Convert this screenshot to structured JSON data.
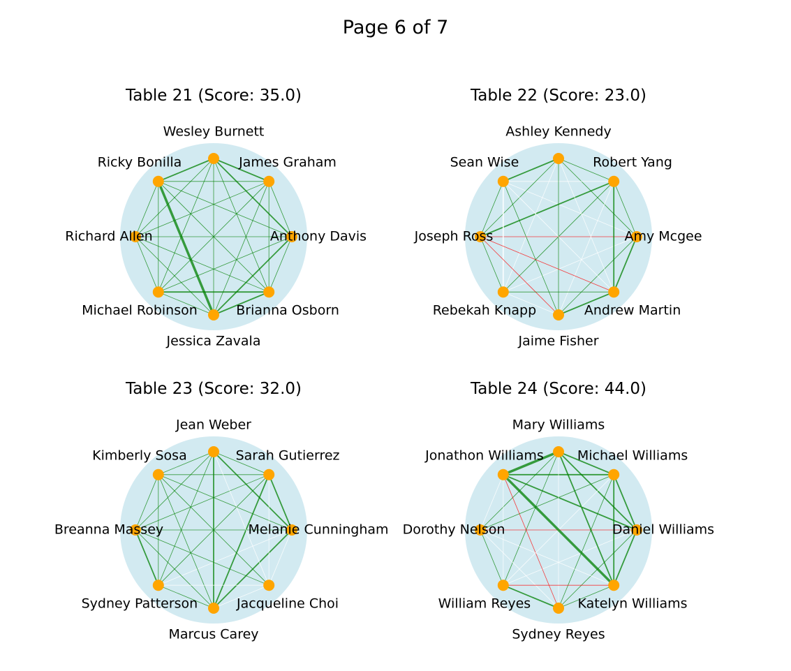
{
  "page": {
    "title": "Page 6 of 7"
  },
  "colors": {
    "table_disk": "#add8e6",
    "seat_marker": "#ffa500",
    "positive_edge": "#008000",
    "negative_edge": "#ff0000",
    "neutral_edge": "#ffffff"
  },
  "tables": [
    {
      "title": "Table 21 (Score: 35.0)",
      "guests": [
        "Anthony Davis",
        "James Graham",
        "Wesley Burnett",
        "Ricky Bonilla",
        "Richard Allen",
        "Michael Robinson",
        "Jessica Zavala",
        "Brianna Osborn"
      ],
      "edges": [
        [
          0,
          1,
          "pos",
          "thin"
        ],
        [
          0,
          2,
          "pos",
          "med"
        ],
        [
          0,
          3,
          "pos",
          "thin"
        ],
        [
          0,
          4,
          "pos",
          "thin"
        ],
        [
          0,
          5,
          "pos",
          "thin"
        ],
        [
          0,
          6,
          "pos",
          "med"
        ],
        [
          0,
          7,
          "pos",
          "thin"
        ],
        [
          1,
          2,
          "pos",
          "med"
        ],
        [
          1,
          3,
          "pos",
          "thin"
        ],
        [
          1,
          4,
          "pos",
          "thin"
        ],
        [
          1,
          5,
          "pos",
          "thin"
        ],
        [
          1,
          6,
          "pos",
          "thin"
        ],
        [
          1,
          7,
          "pos",
          "thin"
        ],
        [
          2,
          3,
          "pos",
          "med"
        ],
        [
          2,
          4,
          "pos",
          "thin"
        ],
        [
          2,
          5,
          "pos",
          "thin"
        ],
        [
          2,
          6,
          "pos",
          "thin"
        ],
        [
          2,
          7,
          "pos",
          "thin"
        ],
        [
          3,
          4,
          "pos",
          "thin"
        ],
        [
          3,
          5,
          "pos",
          "thin"
        ],
        [
          3,
          6,
          "pos",
          "thick"
        ],
        [
          3,
          7,
          "pos",
          "thin"
        ],
        [
          4,
          5,
          "pos",
          "thin"
        ],
        [
          4,
          6,
          "pos",
          "thin"
        ],
        [
          4,
          7,
          "pos",
          "thin"
        ],
        [
          5,
          6,
          "pos",
          "thin"
        ],
        [
          5,
          7,
          "pos",
          "med"
        ],
        [
          6,
          7,
          "pos",
          "med"
        ]
      ]
    },
    {
      "title": "Table 22 (Score: 23.0)",
      "guests": [
        "Amy Mcgee",
        "Robert Yang",
        "Ashley Kennedy",
        "Sean Wise",
        "Joseph Ross",
        "Rebekah Knapp",
        "Jaime Fisher",
        "Andrew Martin"
      ],
      "edges": [
        [
          0,
          1,
          "pos",
          "thin"
        ],
        [
          0,
          2,
          "pos",
          "thin"
        ],
        [
          0,
          3,
          "neu",
          "thin"
        ],
        [
          0,
          4,
          "neg",
          "thin"
        ],
        [
          0,
          5,
          "neu",
          "thin"
        ],
        [
          0,
          6,
          "pos",
          "thin"
        ],
        [
          0,
          7,
          "pos",
          "med"
        ],
        [
          1,
          2,
          "pos",
          "thin"
        ],
        [
          1,
          3,
          "neu",
          "thin"
        ],
        [
          1,
          4,
          "pos",
          "med"
        ],
        [
          1,
          5,
          "pos",
          "thin"
        ],
        [
          1,
          6,
          "neu",
          "thin"
        ],
        [
          1,
          7,
          "pos",
          "med"
        ],
        [
          2,
          3,
          "pos",
          "med"
        ],
        [
          2,
          4,
          "pos",
          "thin"
        ],
        [
          2,
          5,
          "neu",
          "thin"
        ],
        [
          2,
          6,
          "pos",
          "thin"
        ],
        [
          2,
          7,
          "neu",
          "thin"
        ],
        [
          3,
          4,
          "pos",
          "thin"
        ],
        [
          3,
          5,
          "neu",
          "med"
        ],
        [
          3,
          6,
          "pos",
          "thin"
        ],
        [
          3,
          7,
          "neu",
          "thin"
        ],
        [
          4,
          5,
          "pos",
          "thin"
        ],
        [
          4,
          6,
          "neg",
          "thin"
        ],
        [
          4,
          7,
          "neg",
          "thin"
        ],
        [
          5,
          6,
          "neu",
          "thin"
        ],
        [
          5,
          7,
          "pos",
          "thin"
        ],
        [
          6,
          7,
          "pos",
          "med"
        ]
      ]
    },
    {
      "title": "Table 23 (Score: 32.0)",
      "guests": [
        "Melanie Cunningham",
        "Sarah Gutierrez",
        "Jean Weber",
        "Kimberly Sosa",
        "Breanna Massey",
        "Sydney Patterson",
        "Marcus Carey",
        "Jacqueline Choi"
      ],
      "edges": [
        [
          0,
          1,
          "pos",
          "med"
        ],
        [
          0,
          2,
          "pos",
          "med"
        ],
        [
          0,
          3,
          "pos",
          "thin"
        ],
        [
          0,
          4,
          "pos",
          "thin"
        ],
        [
          0,
          5,
          "neu",
          "thin"
        ],
        [
          0,
          6,
          "pos",
          "med"
        ],
        [
          0,
          7,
          "neu",
          "thin"
        ],
        [
          1,
          2,
          "pos",
          "thin"
        ],
        [
          1,
          3,
          "pos",
          "thin"
        ],
        [
          1,
          4,
          "pos",
          "thin"
        ],
        [
          1,
          5,
          "pos",
          "thin"
        ],
        [
          1,
          6,
          "pos",
          "med"
        ],
        [
          1,
          7,
          "neu",
          "thin"
        ],
        [
          2,
          3,
          "pos",
          "thin"
        ],
        [
          2,
          4,
          "pos",
          "thin"
        ],
        [
          2,
          5,
          "pos",
          "thin"
        ],
        [
          2,
          6,
          "pos",
          "med"
        ],
        [
          2,
          7,
          "neu",
          "thin"
        ],
        [
          3,
          4,
          "pos",
          "thin"
        ],
        [
          3,
          5,
          "pos",
          "thin"
        ],
        [
          3,
          6,
          "pos",
          "thin"
        ],
        [
          3,
          7,
          "pos",
          "thin"
        ],
        [
          4,
          5,
          "pos",
          "med"
        ],
        [
          4,
          6,
          "pos",
          "thin"
        ],
        [
          4,
          7,
          "pos",
          "thin"
        ],
        [
          5,
          6,
          "pos",
          "thin"
        ],
        [
          5,
          7,
          "neu",
          "thin"
        ],
        [
          6,
          7,
          "neu",
          "thin"
        ]
      ]
    },
    {
      "title": "Table 24 (Score: 44.0)",
      "guests": [
        "Daniel Williams",
        "Michael Williams",
        "Mary Williams",
        "Jonathon Williams",
        "Dorothy Nelson",
        "William Reyes",
        "Sydney Reyes",
        "Katelyn Williams"
      ],
      "edges": [
        [
          0,
          1,
          "pos",
          "med"
        ],
        [
          0,
          2,
          "pos",
          "med"
        ],
        [
          0,
          3,
          "pos",
          "med"
        ],
        [
          0,
          4,
          "neg",
          "thin"
        ],
        [
          0,
          5,
          "neu",
          "thin"
        ],
        [
          0,
          6,
          "pos",
          "thin"
        ],
        [
          0,
          7,
          "pos",
          "med"
        ],
        [
          1,
          2,
          "pos",
          "med"
        ],
        [
          1,
          3,
          "pos",
          "med"
        ],
        [
          1,
          4,
          "pos",
          "thin"
        ],
        [
          1,
          5,
          "neu",
          "thin"
        ],
        [
          1,
          6,
          "pos",
          "thin"
        ],
        [
          1,
          7,
          "pos",
          "med"
        ],
        [
          2,
          3,
          "pos",
          "thick"
        ],
        [
          2,
          4,
          "pos",
          "thin"
        ],
        [
          2,
          5,
          "pos",
          "thin"
        ],
        [
          2,
          6,
          "neu",
          "thin"
        ],
        [
          2,
          7,
          "pos",
          "med"
        ],
        [
          3,
          4,
          "neu",
          "thin"
        ],
        [
          3,
          5,
          "neu",
          "thin"
        ],
        [
          3,
          6,
          "neg",
          "thin"
        ],
        [
          3,
          7,
          "pos",
          "thick"
        ],
        [
          4,
          5,
          "pos",
          "thin"
        ],
        [
          4,
          6,
          "neu",
          "thin"
        ],
        [
          4,
          7,
          "neu",
          "thin"
        ],
        [
          5,
          6,
          "pos",
          "med"
        ],
        [
          5,
          7,
          "neg",
          "thin"
        ],
        [
          6,
          7,
          "pos",
          "thin"
        ]
      ]
    }
  ]
}
